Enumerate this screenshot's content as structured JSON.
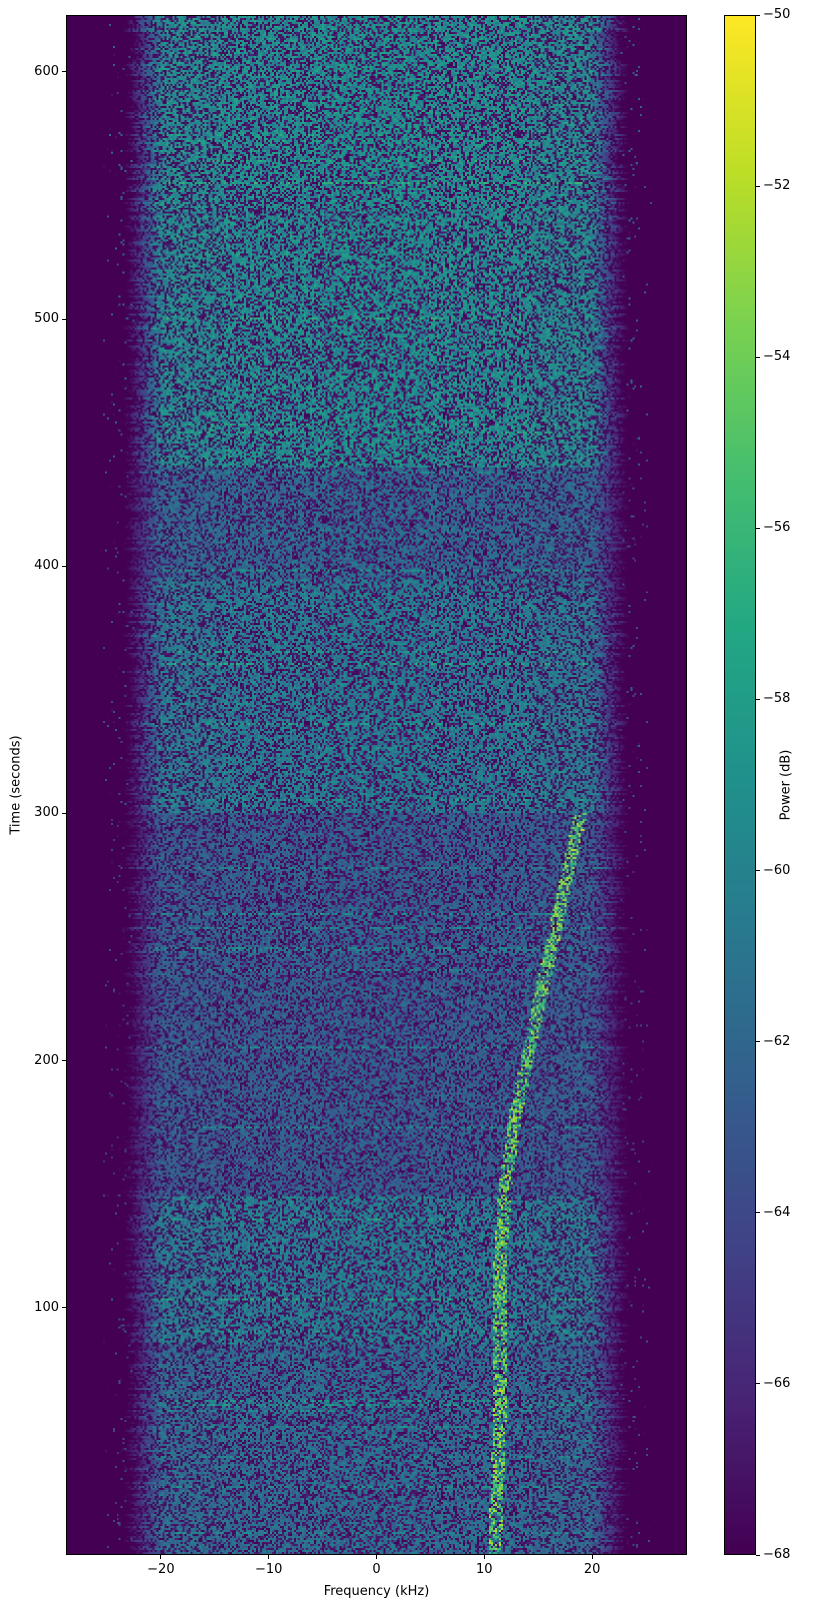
{
  "chart_data": {
    "type": "heatmap",
    "title": "",
    "xlabel": "Frequency (kHz)",
    "ylabel": "Time (seconds)",
    "xlim": [
      -28.8,
      28.8
    ],
    "ylim": [
      0,
      623
    ],
    "xticks": [
      -20,
      -10,
      0,
      10,
      20
    ],
    "xtick_labels": [
      "−20",
      "−10",
      "0",
      "10",
      "20"
    ],
    "yticks": [
      100,
      200,
      300,
      400,
      500,
      600
    ],
    "ytick_labels": [
      "100",
      "200",
      "300",
      "400",
      "500",
      "600"
    ],
    "colorbar": {
      "label": "Power (dB)",
      "colormap": "viridis",
      "range": [
        -68,
        -50
      ],
      "ticks": [
        -50,
        -52,
        -54,
        -56,
        -58,
        -60,
        -62,
        -64,
        -66,
        -68
      ],
      "tick_labels": [
        "−50",
        "−52",
        "−54",
        "−56",
        "−58",
        "−60",
        "−62",
        "−64",
        "−66",
        "−68"
      ]
    },
    "occupied_band_khz": [
      -23,
      23
    ],
    "drifting_tone": {
      "time_s": [
        0,
        60,
        120,
        150,
        180,
        210,
        240,
        270,
        300
      ],
      "freq_khz": [
        11,
        11.5,
        11.5,
        12,
        13,
        14.5,
        16,
        17.5,
        19
      ]
    },
    "grid": false,
    "legend": "none"
  }
}
